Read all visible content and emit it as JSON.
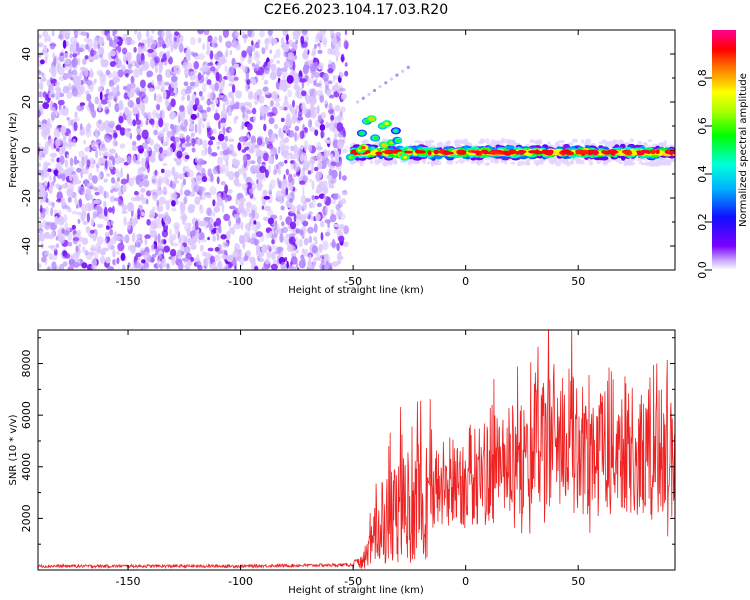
{
  "title": "C2E6.2023.104.17.03.R20",
  "chart_data": [
    {
      "type": "heatmap",
      "xlabel": "Height of straight line (km)",
      "ylabel": "Frequency (Hz)",
      "xlim": [
        -190,
        93
      ],
      "ylim": [
        -50,
        50
      ],
      "xticks": [
        -150,
        -100,
        -50,
        0,
        50
      ],
      "yticks": [
        -40,
        -20,
        0,
        20,
        40
      ],
      "grid": false,
      "features": {
        "noise_region_x": [
          -190,
          -55
        ],
        "signal_band_x": [
          -55,
          93
        ],
        "signal_band_center_hz": -1,
        "burst_x": [
          -50,
          -25
        ],
        "burst_freq_range_hz": [
          -3,
          15
        ]
      },
      "colorbar": {
        "label": "Normalized spectral amplitude",
        "range": [
          0.0,
          1.0
        ],
        "ticks": [
          0.0,
          0.2,
          0.4,
          0.6,
          0.8
        ]
      }
    },
    {
      "type": "line",
      "xlabel": "Height of straight line (km)",
      "ylabel": "SNR (10 * v/v)",
      "xlim": [
        -190,
        93
      ],
      "ylim": [
        0,
        9300
      ],
      "xticks": [
        -150,
        -100,
        -50,
        0,
        50
      ],
      "yticks": [
        2000,
        4000,
        6000,
        8000
      ],
      "grid": false,
      "series": [
        {
          "name": "SNR",
          "color": "#ee2222",
          "x": [
            -190,
            -100,
            -50,
            -45,
            -40,
            -30,
            -20,
            -10,
            0,
            10,
            20,
            30,
            40,
            50,
            60,
            70,
            80,
            93
          ],
          "values": [
            150,
            150,
            200,
            300,
            1400,
            2300,
            2700,
            3300,
            3600,
            3800,
            4100,
            4700,
            5300,
            4700,
            4700,
            4900,
            4300,
            4300
          ]
        }
      ]
    }
  ],
  "colors": {
    "signal": "#ee2222",
    "noise": "#7a00ff"
  }
}
